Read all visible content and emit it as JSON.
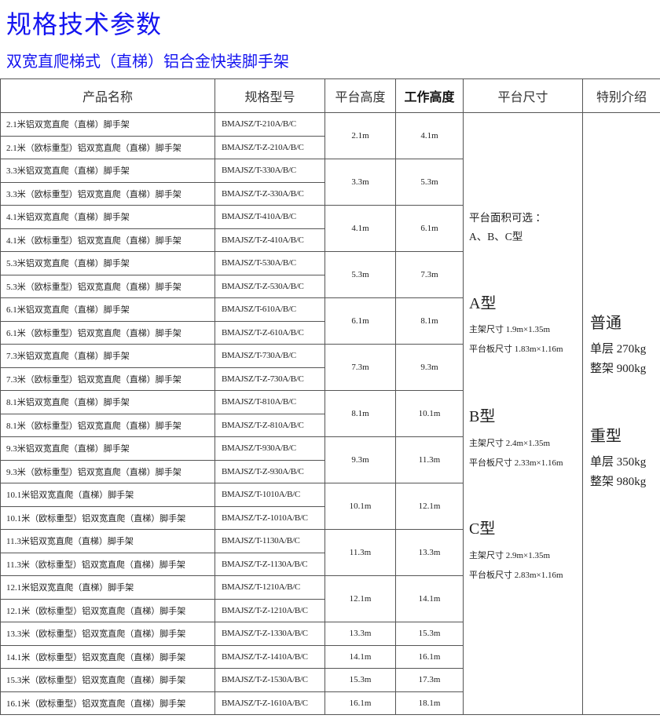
{
  "title": "规格技术参数",
  "subtitle": "双宽直爬梯式（直梯）铝合金快装脚手架",
  "table": {
    "headers": [
      "产品名称",
      "规格型号",
      "平台高度",
      "工作高度",
      "平台尺寸",
      "特别介绍"
    ],
    "groups": [
      {
        "platform_height": "2.1m",
        "working_height": "4.1m",
        "products": [
          {
            "name": "2.1米铝双宽直爬（直梯）脚手架",
            "model": "BMAJSZ/T-210A/B/C"
          },
          {
            "name": "2.1米（欧标重型）铝双宽直爬（直梯）脚手架",
            "model": "BMAJSZ/T-Z-210A/B/C"
          }
        ]
      },
      {
        "platform_height": "3.3m",
        "working_height": "5.3m",
        "products": [
          {
            "name": "3.3米铝双宽直爬（直梯）脚手架",
            "model": "BMAJSZ/T-330A/B/C"
          },
          {
            "name": "3.3米（欧标重型）铝双宽直爬（直梯）脚手架",
            "model": "BMAJSZ/T-Z-330A/B/C"
          }
        ]
      },
      {
        "platform_height": "4.1m",
        "working_height": "6.1m",
        "products": [
          {
            "name": "4.1米铝双宽直爬（直梯）脚手架",
            "model": "BMAJSZ/T-410A/B/C"
          },
          {
            "name": "4.1米（欧标重型）铝双宽直爬（直梯）脚手架",
            "model": "BMAJSZ/T-Z-410A/B/C"
          }
        ]
      },
      {
        "platform_height": "5.3m",
        "working_height": "7.3m",
        "products": [
          {
            "name": "5.3米铝双宽直爬（直梯）脚手架",
            "model": "BMAJSZ/T-530A/B/C"
          },
          {
            "name": "5.3米（欧标重型）铝双宽直爬（直梯）脚手架",
            "model": "BMAJSZ/T-Z-530A/B/C"
          }
        ]
      },
      {
        "platform_height": "6.1m",
        "working_height": "8.1m",
        "products": [
          {
            "name": "6.1米铝双宽直爬（直梯）脚手架",
            "model": "BMAJSZ/T-610A/B/C"
          },
          {
            "name": "6.1米（欧标重型）铝双宽直爬（直梯）脚手架",
            "model": "BMAJSZ/T-Z-610A/B/C"
          }
        ]
      },
      {
        "platform_height": "7.3m",
        "working_height": "9.3m",
        "products": [
          {
            "name": "7.3米铝双宽直爬（直梯）脚手架",
            "model": "BMAJSZ/T-730A/B/C"
          },
          {
            "name": "7.3米（欧标重型）铝双宽直爬（直梯）脚手架",
            "model": "BMAJSZ/T-Z-730A/B/C"
          }
        ]
      },
      {
        "platform_height": "8.1m",
        "working_height": "10.1m",
        "products": [
          {
            "name": "8.1米铝双宽直爬（直梯）脚手架",
            "model": "BMAJSZ/T-810A/B/C"
          },
          {
            "name": "8.1米（欧标重型）铝双宽直爬（直梯）脚手架",
            "model": "BMAJSZ/T-Z-810A/B/C"
          }
        ]
      },
      {
        "platform_height": "9.3m",
        "working_height": "11.3m",
        "products": [
          {
            "name": "9.3米铝双宽直爬（直梯）脚手架",
            "model": "BMAJSZ/T-930A/B/C"
          },
          {
            "name": "9.3米（欧标重型）铝双宽直爬（直梯）脚手架",
            "model": "BMAJSZ/T-Z-930A/B/C"
          }
        ]
      },
      {
        "platform_height": "10.1m",
        "working_height": "12.1m",
        "products": [
          {
            "name": "10.1米铝双宽直爬（直梯）脚手架",
            "model": "BMAJSZ/T-1010A/B/C"
          },
          {
            "name": "10.1米（欧标重型）铝双宽直爬（直梯）脚手架",
            "model": "BMAJSZ/T-Z-1010A/B/C"
          }
        ]
      },
      {
        "platform_height": "11.3m",
        "working_height": "13.3m",
        "products": [
          {
            "name": "11.3米铝双宽直爬（直梯）脚手架",
            "model": "BMAJSZ/T-1130A/B/C"
          },
          {
            "name": "11.3米（欧标重型）铝双宽直爬（直梯）脚手架",
            "model": "BMAJSZ/T-Z-1130A/B/C"
          }
        ]
      },
      {
        "platform_height": "12.1m",
        "working_height": "14.1m",
        "products": [
          {
            "name": "12.1米铝双宽直爬（直梯）脚手架",
            "model": "BMAJSZ/T-1210A/B/C"
          },
          {
            "name": "12.1米（欧标重型）铝双宽直爬（直梯）脚手架",
            "model": "BMAJSZ/T-Z-1210A/B/C"
          }
        ]
      },
      {
        "platform_height": "13.3m",
        "working_height": "15.3m",
        "products": [
          {
            "name": "13.3米（欧标重型）铝双宽直爬（直梯）脚手架",
            "model": "BMAJSZ/T-Z-1330A/B/C"
          }
        ]
      },
      {
        "platform_height": "14.1m",
        "working_height": "16.1m",
        "products": [
          {
            "name": "14.1米（欧标重型）铝双宽直爬（直梯）脚手架",
            "model": "BMAJSZ/T-Z-1410A/B/C"
          }
        ]
      },
      {
        "platform_height": "15.3m",
        "working_height": "17.3m",
        "products": [
          {
            "name": "15.3米（欧标重型）铝双宽直爬（直梯）脚手架",
            "model": "BMAJSZ/T-Z-1530A/B/C"
          }
        ]
      },
      {
        "platform_height": "16.1m",
        "working_height": "18.1m",
        "products": [
          {
            "name": "16.1米（欧标重型）铝双宽直爬（直梯）脚手架",
            "model": "BMAJSZ/T-Z-1610A/B/C"
          }
        ]
      }
    ],
    "platform_size": {
      "intro_line1": "平台面积可选 ：",
      "intro_line2": "A、B、C型",
      "types": [
        {
          "label": "A型",
          "main_frame": "主架尺寸 1.9m×1.35m",
          "platform_board": "平台板尺寸 1.83m×1.16m"
        },
        {
          "label": "B型",
          "main_frame": "主架尺寸 2.4m×1.35m",
          "platform_board": "平台板尺寸 2.33m×1.16m"
        },
        {
          "label": "C型",
          "main_frame": "主架尺寸 2.9m×1.35m",
          "platform_board": "平台板尺寸 2.83m×1.16m"
        }
      ]
    },
    "special": [
      {
        "label": "普通",
        "single_layer": "单层 270kg",
        "whole_frame": "整架 900kg"
      },
      {
        "label": "重型",
        "single_layer": "单层 350kg",
        "whole_frame": "整架 980kg"
      }
    ]
  }
}
